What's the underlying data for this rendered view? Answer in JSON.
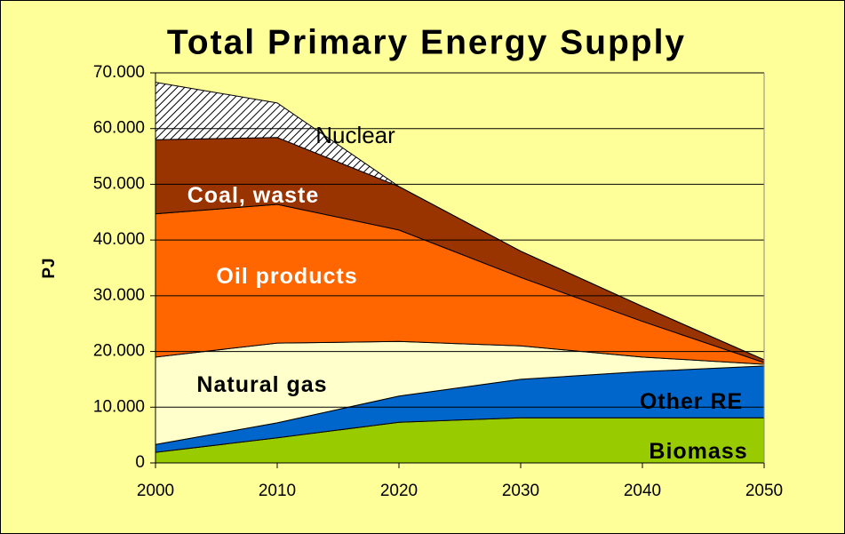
{
  "chart_data": {
    "type": "stacked-area",
    "title": "Total Primary Energy Supply",
    "y_label": "PJ",
    "x": [
      2000,
      2010,
      2020,
      2030,
      2040,
      2050
    ],
    "xlim": [
      2000,
      2050
    ],
    "xticks": [
      2000,
      2010,
      2020,
      2030,
      2040,
      2050
    ],
    "ylim": [
      0,
      70000
    ],
    "yticks": [
      0,
      {
        "value": 10000,
        "label": "10.000"
      },
      {
        "value": 20000,
        "label": "20.000"
      },
      {
        "value": 30000,
        "label": "30.000"
      },
      {
        "value": 40000,
        "label": "40.000"
      },
      {
        "value": 50000,
        "label": "50.000"
      },
      {
        "value": 60000,
        "label": "60.000"
      },
      {
        "value": 70000,
        "label": "70.000"
      }
    ],
    "grid": true,
    "series": [
      {
        "name": "Biomass",
        "color": "#99cc00",
        "values": [
          1900,
          4500,
          7300,
          8100,
          8100,
          8100
        ]
      },
      {
        "name": "Other RE",
        "color": "#0066cc",
        "values": [
          1400,
          2700,
          4700,
          6900,
          8300,
          9300
        ]
      },
      {
        "name": "Natural gas",
        "color": "#ffffcc",
        "values": [
          15700,
          14300,
          9800,
          6000,
          2600,
          300
        ]
      },
      {
        "name": "Oil products",
        "color": "#ff6600",
        "values": [
          25700,
          24900,
          20000,
          12300,
          6400,
          300
        ]
      },
      {
        "name": "Coal, waste",
        "color": "#993300",
        "values": [
          13300,
          12000,
          7800,
          4700,
          2700,
          500
        ]
      },
      {
        "name": "Nuclear",
        "color": "hatch",
        "values": [
          10300,
          6200,
          0,
          0,
          0,
          0
        ]
      }
    ]
  }
}
